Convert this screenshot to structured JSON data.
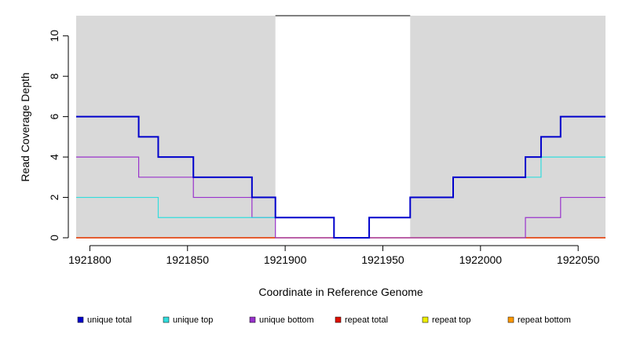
{
  "chart_data": {
    "type": "line",
    "title": "",
    "xlabel": "Coordinate in Reference Genome",
    "ylabel": "Read Coverage Depth",
    "xlim": [
      1921793,
      1922064
    ],
    "ylim": [
      0,
      11
    ],
    "x_ticks": [
      1921800,
      1921850,
      1921900,
      1921950,
      1922000,
      1922050
    ],
    "x_tick_labels": [
      "1921800",
      "1921850",
      "1921900",
      "1921950",
      "1922000",
      "1922050"
    ],
    "y_ticks": [
      0,
      2,
      4,
      6,
      8,
      10
    ],
    "y_tick_labels": [
      "0",
      "2",
      "4",
      "6",
      "8",
      "10"
    ],
    "shaded_regions": [
      {
        "x0": 1921793,
        "x1": 1921895,
        "color": "#d9d9d9"
      },
      {
        "x0": 1921964,
        "x1": 1922064,
        "color": "#d9d9d9"
      }
    ],
    "unshaded_box": {
      "x0": 1921895,
      "x1": 1921964,
      "top": 11
    },
    "legend_position": "bottom",
    "series": [
      {
        "name": "unique total",
        "color": "#0000cc",
        "width": 2,
        "steps": [
          [
            1921793,
            6
          ],
          [
            1921825,
            5
          ],
          [
            1921835,
            4
          ],
          [
            1921853,
            3
          ],
          [
            1921883,
            2
          ],
          [
            1921895,
            1
          ],
          [
            1921925,
            0
          ],
          [
            1921943,
            1
          ],
          [
            1921964,
            2
          ],
          [
            1921986,
            3
          ],
          [
            1922023,
            4
          ],
          [
            1922031,
            5
          ],
          [
            1922041,
            6
          ],
          [
            1922064,
            6
          ]
        ]
      },
      {
        "name": "unique top",
        "color": "#33dddd",
        "width": 1.2,
        "steps": [
          [
            1921793,
            2
          ],
          [
            1921835,
            1
          ],
          [
            1921925,
            0
          ],
          [
            1921943,
            1
          ],
          [
            1921964,
            2
          ],
          [
            1921986,
            3
          ],
          [
            1922031,
            4
          ],
          [
            1922064,
            4
          ]
        ]
      },
      {
        "name": "unique bottom",
        "color": "#9933cc",
        "width": 1.2,
        "steps": [
          [
            1921793,
            4
          ],
          [
            1921825,
            3
          ],
          [
            1921853,
            2
          ],
          [
            1921883,
            1
          ],
          [
            1921895,
            0
          ],
          [
            1922023,
            1
          ],
          [
            1922041,
            2
          ],
          [
            1922064,
            2
          ]
        ]
      },
      {
        "name": "repeat total",
        "color": "#dd1100",
        "width": 1.2,
        "steps": [
          [
            1921793,
            0
          ],
          [
            1922064,
            0
          ]
        ]
      },
      {
        "name": "repeat top",
        "color": "#eeee00",
        "width": 1.2,
        "steps": [
          [
            1921793,
            0
          ],
          [
            1922064,
            0
          ]
        ]
      },
      {
        "name": "repeat bottom",
        "color": "#ff9900",
        "width": 1.2,
        "steps": [
          [
            1921793,
            0
          ],
          [
            1922064,
            0
          ]
        ]
      }
    ]
  }
}
